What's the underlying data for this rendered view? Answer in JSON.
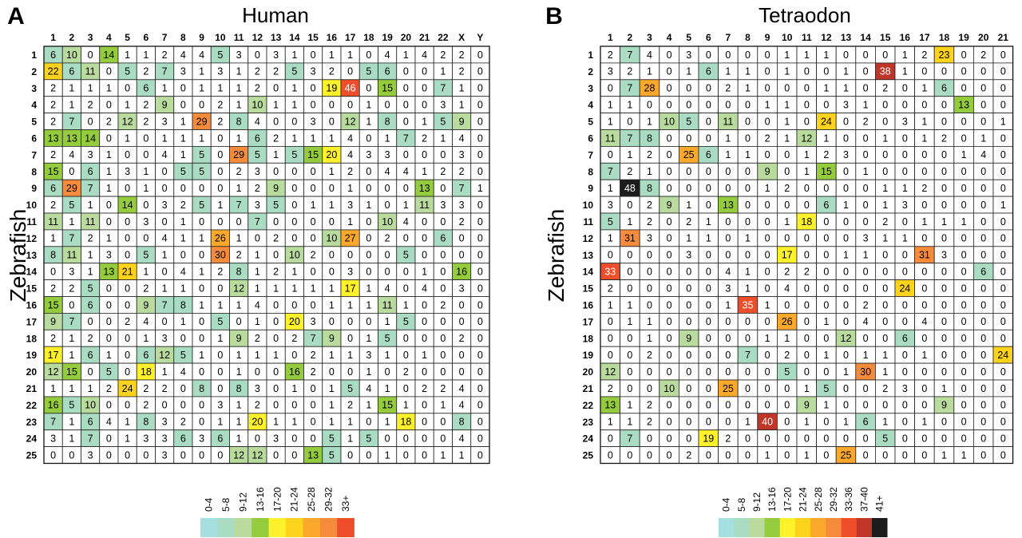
{
  "chart_data": [
    {
      "type": "heatmap",
      "panel_letter": "A",
      "title": "Human",
      "ylabel": "Zebrafish",
      "columns": [
        "1",
        "2",
        "3",
        "4",
        "5",
        "6",
        "7",
        "8",
        "9",
        "10",
        "11",
        "12",
        "13",
        "14",
        "15",
        "16",
        "17",
        "18",
        "19",
        "20",
        "21",
        "22",
        "X",
        "Y"
      ],
      "rows": [
        "1",
        "2",
        "3",
        "4",
        "5",
        "6",
        "7",
        "8",
        "9",
        "10",
        "11",
        "12",
        "13",
        "14",
        "15",
        "16",
        "17",
        "18",
        "19",
        "20",
        "21",
        "22",
        "23",
        "24",
        "25"
      ],
      "values": [
        [
          6,
          10,
          0,
          14,
          1,
          1,
          2,
          4,
          4,
          5,
          3,
          0,
          3,
          1,
          0,
          1,
          1,
          0,
          4,
          1,
          4,
          2,
          2,
          0
        ],
        [
          22,
          6,
          11,
          0,
          5,
          2,
          7,
          3,
          1,
          3,
          1,
          2,
          2,
          5,
          3,
          2,
          0,
          5,
          6,
          0,
          0,
          1,
          2,
          0
        ],
        [
          2,
          1,
          1,
          1,
          0,
          6,
          1,
          0,
          1,
          1,
          1,
          2,
          0,
          1,
          0,
          19,
          46,
          0,
          15,
          0,
          0,
          7,
          1,
          0
        ],
        [
          2,
          1,
          2,
          0,
          1,
          2,
          9,
          0,
          0,
          2,
          1,
          10,
          1,
          1,
          0,
          0,
          0,
          1,
          0,
          0,
          0,
          3,
          1,
          0
        ],
        [
          2,
          7,
          0,
          2,
          12,
          2,
          3,
          1,
          29,
          2,
          8,
          4,
          0,
          0,
          3,
          0,
          12,
          1,
          8,
          0,
          1,
          5,
          9,
          0
        ],
        [
          13,
          13,
          14,
          0,
          1,
          0,
          1,
          1,
          1,
          0,
          1,
          6,
          2,
          1,
          1,
          1,
          4,
          0,
          1,
          7,
          2,
          1,
          4,
          0
        ],
        [
          2,
          4,
          3,
          1,
          0,
          0,
          4,
          1,
          5,
          0,
          29,
          5,
          1,
          5,
          15,
          20,
          4,
          3,
          3,
          0,
          0,
          0,
          3,
          0
        ],
        [
          15,
          0,
          6,
          1,
          3,
          1,
          0,
          5,
          5,
          0,
          2,
          3,
          0,
          0,
          0,
          1,
          2,
          0,
          4,
          4,
          1,
          2,
          2,
          0
        ],
        [
          6,
          29,
          7,
          1,
          0,
          1,
          0,
          0,
          0,
          0,
          1,
          2,
          9,
          0,
          0,
          0,
          1,
          0,
          0,
          0,
          13,
          0,
          7,
          1
        ],
        [
          2,
          5,
          1,
          0,
          14,
          0,
          3,
          2,
          5,
          1,
          7,
          3,
          5,
          0,
          1,
          1,
          3,
          1,
          0,
          1,
          11,
          3,
          3,
          0
        ],
        [
          11,
          1,
          11,
          0,
          0,
          3,
          0,
          1,
          0,
          0,
          0,
          7,
          0,
          0,
          0,
          0,
          1,
          0,
          10,
          4,
          0,
          0,
          2,
          0
        ],
        [
          1,
          7,
          2,
          1,
          0,
          0,
          4,
          1,
          1,
          26,
          1,
          0,
          2,
          0,
          0,
          10,
          27,
          0,
          2,
          0,
          0,
          6,
          0,
          0
        ],
        [
          8,
          11,
          1,
          3,
          0,
          5,
          1,
          0,
          0,
          30,
          2,
          1,
          0,
          10,
          2,
          0,
          0,
          0,
          0,
          5,
          0,
          0,
          0,
          0
        ],
        [
          0,
          3,
          1,
          13,
          21,
          1,
          0,
          4,
          1,
          2,
          8,
          1,
          2,
          1,
          0,
          0,
          3,
          0,
          0,
          0,
          1,
          0,
          16,
          0
        ],
        [
          2,
          2,
          5,
          0,
          0,
          2,
          1,
          1,
          0,
          0,
          12,
          1,
          1,
          1,
          1,
          1,
          17,
          1,
          4,
          0,
          4,
          0,
          3,
          0
        ],
        [
          15,
          0,
          6,
          0,
          0,
          9,
          7,
          8,
          1,
          1,
          1,
          4,
          0,
          0,
          0,
          1,
          1,
          1,
          11,
          1,
          0,
          2,
          0,
          0
        ],
        [
          9,
          7,
          0,
          0,
          2,
          4,
          0,
          1,
          0,
          5,
          0,
          1,
          0,
          20,
          3,
          0,
          0,
          0,
          1,
          5,
          0,
          0,
          0,
          0
        ],
        [
          2,
          1,
          2,
          0,
          0,
          1,
          3,
          0,
          0,
          1,
          9,
          2,
          0,
          2,
          7,
          9,
          0,
          1,
          5,
          0,
          0,
          0,
          2,
          0
        ],
        [
          17,
          1,
          6,
          1,
          0,
          6,
          12,
          5,
          1,
          0,
          1,
          1,
          1,
          0,
          2,
          1,
          1,
          3,
          1,
          0,
          1,
          0,
          0,
          0
        ],
        [
          12,
          15,
          0,
          5,
          0,
          18,
          1,
          4,
          0,
          0,
          1,
          0,
          0,
          16,
          2,
          0,
          0,
          1,
          0,
          2,
          0,
          0,
          0,
          0
        ],
        [
          1,
          1,
          1,
          2,
          24,
          2,
          2,
          0,
          8,
          0,
          8,
          3,
          0,
          1,
          0,
          1,
          5,
          4,
          1,
          0,
          2,
          2,
          4,
          0
        ],
        [
          16,
          5,
          10,
          0,
          0,
          2,
          0,
          0,
          0,
          3,
          1,
          2,
          0,
          0,
          0,
          1,
          2,
          1,
          15,
          1,
          0,
          1,
          4,
          0
        ],
        [
          7,
          1,
          6,
          4,
          1,
          8,
          3,
          2,
          0,
          1,
          1,
          20,
          1,
          1,
          0,
          1,
          1,
          0,
          1,
          18,
          0,
          0,
          8,
          0
        ],
        [
          3,
          1,
          7,
          0,
          1,
          3,
          3,
          6,
          3,
          6,
          1,
          0,
          3,
          0,
          0,
          5,
          1,
          5,
          0,
          0,
          0,
          0,
          4,
          0
        ],
        [
          0,
          0,
          3,
          0,
          0,
          0,
          3,
          0,
          0,
          0,
          12,
          12,
          0,
          0,
          13,
          5,
          0,
          0,
          1,
          0,
          0,
          1,
          1,
          0
        ]
      ],
      "legend": {
        "labels": [
          "0-4",
          "5-8",
          "9-12",
          "13-16",
          "17-20",
          "21-24",
          "25-28",
          "29-32",
          "33+"
        ],
        "colors": [
          "#a6dfe0",
          "#a9dcc3",
          "#b9db9e",
          "#94cc3d",
          "#fff22a",
          "#fed31c",
          "#fba82b",
          "#f78b3c",
          "#ef4e2a"
        ]
      }
    },
    {
      "type": "heatmap",
      "panel_letter": "B",
      "title": "Tetraodon",
      "ylabel": "Zebrafish",
      "columns": [
        "1",
        "2",
        "3",
        "4",
        "5",
        "6",
        "7",
        "8",
        "9",
        "10",
        "11",
        "12",
        "13",
        "14",
        "15",
        "16",
        "17",
        "18",
        "19",
        "20",
        "21"
      ],
      "rows": [
        "1",
        "2",
        "3",
        "4",
        "5",
        "6",
        "7",
        "8",
        "9",
        "10",
        "11",
        "12",
        "13",
        "14",
        "15",
        "16",
        "17",
        "18",
        "19",
        "20",
        "21",
        "22",
        "23",
        "24",
        "25"
      ],
      "values": [
        [
          2,
          7,
          4,
          0,
          3,
          0,
          0,
          0,
          0,
          1,
          1,
          1,
          0,
          0,
          0,
          1,
          2,
          23,
          0,
          2,
          0
        ],
        [
          3,
          2,
          1,
          0,
          1,
          6,
          1,
          1,
          0,
          1,
          0,
          0,
          1,
          0,
          38,
          1,
          0,
          0,
          0,
          0,
          0
        ],
        [
          0,
          7,
          28,
          0,
          0,
          0,
          2,
          1,
          0,
          0,
          0,
          1,
          1,
          0,
          2,
          0,
          1,
          6,
          0,
          0,
          0
        ],
        [
          1,
          1,
          0,
          0,
          0,
          0,
          0,
          0,
          1,
          1,
          0,
          0,
          3,
          1,
          0,
          0,
          0,
          0,
          13,
          0,
          0
        ],
        [
          1,
          0,
          1,
          10,
          5,
          0,
          11,
          0,
          0,
          1,
          0,
          24,
          0,
          2,
          0,
          3,
          1,
          0,
          0,
          0,
          1
        ],
        [
          11,
          7,
          8,
          0,
          0,
          0,
          1,
          0,
          2,
          1,
          12,
          1,
          0,
          0,
          1,
          0,
          1,
          2,
          0,
          1,
          0
        ],
        [
          0,
          1,
          2,
          0,
          25,
          6,
          1,
          1,
          0,
          0,
          1,
          2,
          3,
          0,
          0,
          0,
          0,
          0,
          1,
          4,
          0
        ],
        [
          7,
          2,
          1,
          0,
          0,
          0,
          0,
          0,
          9,
          0,
          1,
          15,
          0,
          1,
          0,
          0,
          0,
          0,
          0,
          0,
          0
        ],
        [
          1,
          48,
          8,
          0,
          0,
          0,
          0,
          0,
          1,
          2,
          0,
          0,
          0,
          0,
          1,
          1,
          2,
          0,
          0,
          0,
          0
        ],
        [
          3,
          0,
          2,
          9,
          1,
          0,
          13,
          0,
          0,
          0,
          0,
          6,
          1,
          0,
          1,
          3,
          0,
          0,
          0,
          0,
          1
        ],
        [
          5,
          1,
          2,
          0,
          2,
          1,
          0,
          0,
          0,
          1,
          18,
          0,
          0,
          0,
          2,
          0,
          1,
          1,
          1,
          0,
          0
        ],
        [
          1,
          31,
          3,
          0,
          1,
          1,
          0,
          1,
          0,
          0,
          0,
          0,
          0,
          3,
          1,
          1,
          0,
          0,
          0,
          0,
          0
        ],
        [
          0,
          0,
          0,
          0,
          3,
          0,
          0,
          0,
          0,
          17,
          0,
          0,
          1,
          1,
          0,
          0,
          31,
          3,
          0,
          0,
          0
        ],
        [
          33,
          0,
          0,
          0,
          0,
          0,
          4,
          1,
          0,
          2,
          2,
          0,
          0,
          0,
          0,
          0,
          0,
          0,
          0,
          6,
          0
        ],
        [
          2,
          0,
          0,
          0,
          0,
          0,
          3,
          1,
          0,
          4,
          0,
          0,
          0,
          0,
          0,
          24,
          0,
          0,
          0,
          0,
          0
        ],
        [
          1,
          1,
          0,
          0,
          0,
          0,
          1,
          35,
          1,
          0,
          0,
          0,
          0,
          2,
          0,
          0,
          0,
          0,
          0,
          0,
          0
        ],
        [
          0,
          1,
          1,
          0,
          0,
          0,
          0,
          0,
          0,
          26,
          0,
          1,
          0,
          4,
          0,
          0,
          4,
          0,
          0,
          0,
          0
        ],
        [
          0,
          0,
          1,
          0,
          9,
          0,
          0,
          0,
          1,
          1,
          0,
          0,
          12,
          0,
          0,
          6,
          0,
          0,
          0,
          0,
          0
        ],
        [
          0,
          0,
          2,
          0,
          0,
          0,
          0,
          7,
          0,
          2,
          0,
          1,
          0,
          1,
          1,
          0,
          1,
          0,
          0,
          0,
          24
        ],
        [
          12,
          0,
          0,
          0,
          0,
          0,
          0,
          0,
          0,
          5,
          0,
          0,
          1,
          30,
          1,
          0,
          0,
          0,
          0,
          0,
          0
        ],
        [
          2,
          0,
          0,
          10,
          0,
          0,
          25,
          0,
          0,
          0,
          1,
          5,
          0,
          0,
          2,
          3,
          0,
          1,
          0,
          0,
          0
        ],
        [
          13,
          1,
          2,
          0,
          0,
          0,
          0,
          0,
          0,
          0,
          9,
          1,
          0,
          0,
          0,
          0,
          0,
          9,
          0,
          0,
          0
        ],
        [
          1,
          1,
          2,
          0,
          0,
          0,
          0,
          1,
          40,
          0,
          1,
          0,
          1,
          6,
          1,
          0,
          1,
          0,
          0,
          0,
          0
        ],
        [
          0,
          7,
          0,
          0,
          0,
          19,
          2,
          0,
          0,
          0,
          0,
          0,
          0,
          0,
          5,
          0,
          0,
          0,
          0,
          0,
          0
        ],
        [
          0,
          0,
          0,
          0,
          2,
          0,
          0,
          0,
          1,
          0,
          1,
          0,
          25,
          0,
          0,
          0,
          0,
          1,
          1,
          0,
          0
        ]
      ],
      "legend": {
        "labels": [
          "0-4",
          "5-8",
          "9-12",
          "13-16",
          "17-20",
          "21-24",
          "25-28",
          "29-32",
          "33-36",
          "37-40",
          "41+"
        ],
        "colors": [
          "#a6dfe0",
          "#a9dcc3",
          "#b9db9e",
          "#94cc3d",
          "#fff22a",
          "#fed31c",
          "#fba82b",
          "#f78b3c",
          "#ef4e2a",
          "#c0372a",
          "#1c1c1c"
        ]
      }
    }
  ]
}
